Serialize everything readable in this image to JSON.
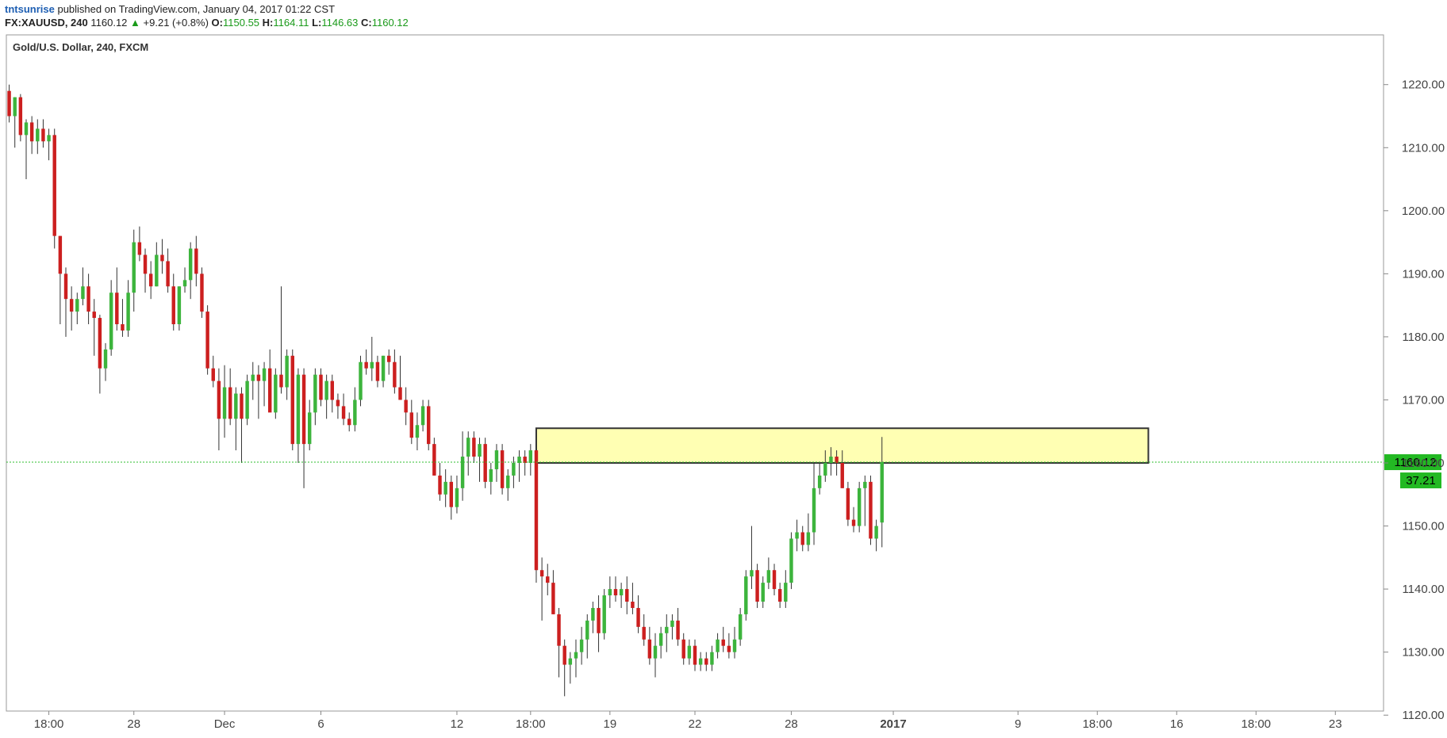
{
  "header": {
    "author": "tntsunrise",
    "published": "published on TradingView.com, January 04, 2017 01:22 CST",
    "symbol": "FX:XAUUSD, 240",
    "last": "1160.12",
    "change_arrow": "▲",
    "change": "+9.21 (+0.8%)",
    "o_label": "O:",
    "o_value": "1150.55",
    "h_label": "H:",
    "h_value": "1164.11",
    "l_label": "L:",
    "l_value": "1146.63",
    "c_label": "C:",
    "c_value": "1160.12"
  },
  "colors": {
    "up": "#3cb43c",
    "down": "#cc1f1f",
    "wick": "#333333",
    "zone_fill": "#ffffb3",
    "zone_stroke": "#333333",
    "price_line": "#2fbf2f",
    "badge_bg": "#23b923",
    "axis": "#888888"
  },
  "chart_data": {
    "type": "candlestick",
    "title": "Gold/U.S. Dollar, 240, FXCM",
    "y_ticks": [
      "1220.00",
      "1210.00",
      "1200.00",
      "1190.00",
      "1180.00",
      "1170.00",
      "1160.00",
      "1150.00",
      "1140.00",
      "1130.00",
      "1120.00"
    ],
    "ylim": [
      1116,
      1226
    ],
    "x_ticks": [
      {
        "label": "18:00",
        "bar": 7,
        "bold": false
      },
      {
        "label": "28",
        "bar": 22,
        "bold": false
      },
      {
        "label": "Dec",
        "bar": 38,
        "bold": false
      },
      {
        "label": "6",
        "bar": 55,
        "bold": false
      },
      {
        "label": "12",
        "bar": 79,
        "bold": false
      },
      {
        "label": "18:00",
        "bar": 92,
        "bold": false
      },
      {
        "label": "19",
        "bar": 106,
        "bold": false
      },
      {
        "label": "22",
        "bar": 121,
        "bold": false
      },
      {
        "label": "28",
        "bar": 138,
        "bold": false
      },
      {
        "label": "2017",
        "bar": 156,
        "bold": true
      },
      {
        "label": "9",
        "bar": 178,
        "bold": false
      },
      {
        "label": "18:00",
        "bar": 192,
        "bold": false
      },
      {
        "label": "16",
        "bar": 206,
        "bold": false
      },
      {
        "label": "18:00",
        "bar": 220,
        "bold": false
      },
      {
        "label": "23",
        "bar": 234,
        "bold": false
      }
    ],
    "total_slots": 243,
    "last_price": "1160.12",
    "countdown": "37.21",
    "zone": {
      "from_bar": 93,
      "to_bar": 201,
      "low": 1160.0,
      "high": 1165.5
    },
    "bars": [
      [
        1219.0,
        1220.0,
        1214.0,
        1215.0
      ],
      [
        1215.0,
        1218.0,
        1210.0,
        1218.0
      ],
      [
        1218.0,
        1218.5,
        1211.0,
        1212.0
      ],
      [
        1212.0,
        1214.5,
        1205.0,
        1214.0
      ],
      [
        1214.0,
        1215.0,
        1209.0,
        1211.0
      ],
      [
        1211.0,
        1214.5,
        1209.0,
        1213.0
      ],
      [
        1213.0,
        1214.5,
        1210.0,
        1211.0
      ],
      [
        1211.0,
        1213.0,
        1208.0,
        1212.0
      ],
      [
        1212.0,
        1213.0,
        1194.0,
        1196.0
      ],
      [
        1196.0,
        1196.0,
        1182.0,
        1190.0
      ],
      [
        1190.0,
        1191.0,
        1180.0,
        1186.0
      ],
      [
        1186.0,
        1188.0,
        1181.0,
        1184.0
      ],
      [
        1184.0,
        1187.0,
        1182.0,
        1186.0
      ],
      [
        1186.0,
        1191.0,
        1185.0,
        1188.0
      ],
      [
        1188.0,
        1190.0,
        1182.0,
        1184.0
      ],
      [
        1184.0,
        1186.0,
        1177.0,
        1183.0
      ],
      [
        1183.0,
        1183.5,
        1171.0,
        1175.0
      ],
      [
        1175.0,
        1179.0,
        1173.0,
        1178.0
      ],
      [
        1178.0,
        1189.0,
        1177.0,
        1187.0
      ],
      [
        1187.0,
        1191.0,
        1181.0,
        1182.0
      ],
      [
        1182.0,
        1186.0,
        1180.0,
        1181.0
      ],
      [
        1181.0,
        1189.0,
        1180.0,
        1187.0
      ],
      [
        1187.0,
        1197.0,
        1184.0,
        1195.0
      ],
      [
        1195.0,
        1197.5,
        1192.0,
        1193.0
      ],
      [
        1193.0,
        1194.0,
        1187.0,
        1190.0
      ],
      [
        1190.0,
        1192.0,
        1186.0,
        1188.0
      ],
      [
        1188.0,
        1195.0,
        1188.0,
        1193.0
      ],
      [
        1193.0,
        1195.5,
        1190.0,
        1192.0
      ],
      [
        1192.0,
        1194.0,
        1187.0,
        1188.0
      ],
      [
        1188.0,
        1190.0,
        1181.0,
        1182.0
      ],
      [
        1182.0,
        1188.0,
        1181.0,
        1188.0
      ],
      [
        1188.0,
        1191.0,
        1187.0,
        1189.0
      ],
      [
        1189.0,
        1195.0,
        1186.0,
        1194.0
      ],
      [
        1194.0,
        1196.0,
        1188.0,
        1190.0
      ],
      [
        1190.0,
        1191.0,
        1183.0,
        1184.0
      ],
      [
        1184.0,
        1185.0,
        1174.0,
        1175.0
      ],
      [
        1175.0,
        1177.0,
        1172.0,
        1173.0
      ],
      [
        1173.0,
        1175.0,
        1162.0,
        1167.0
      ],
      [
        1167.0,
        1175.5,
        1164.0,
        1172.0
      ],
      [
        1172.0,
        1175.0,
        1166.0,
        1167.0
      ],
      [
        1167.0,
        1172.0,
        1162.0,
        1171.0
      ],
      [
        1171.0,
        1172.0,
        1160.0,
        1167.0
      ],
      [
        1167.0,
        1174.0,
        1166.0,
        1173.0
      ],
      [
        1173.0,
        1176.0,
        1170.0,
        1174.0
      ],
      [
        1174.0,
        1175.5,
        1167.0,
        1173.0
      ],
      [
        1173.0,
        1176.0,
        1169.0,
        1175.0
      ],
      [
        1175.0,
        1178.0,
        1170.0,
        1168.0
      ],
      [
        1168.0,
        1175.0,
        1167.0,
        1174.0
      ],
      [
        1174.0,
        1188.0,
        1171.0,
        1172.0
      ],
      [
        1172.0,
        1178.0,
        1170.0,
        1177.0
      ],
      [
        1177.0,
        1178.0,
        1162.0,
        1163.0
      ],
      [
        1163.0,
        1175.0,
        1160.0,
        1174.0
      ],
      [
        1174.0,
        1175.0,
        1156.0,
        1163.0
      ],
      [
        1163.0,
        1170.0,
        1162.0,
        1168.0
      ],
      [
        1168.0,
        1175.0,
        1166.0,
        1174.0
      ],
      [
        1174.0,
        1175.0,
        1169.0,
        1170.0
      ],
      [
        1170.0,
        1174.0,
        1167.0,
        1173.0
      ],
      [
        1173.0,
        1174.0,
        1168.0,
        1170.0
      ],
      [
        1170.0,
        1171.0,
        1167.0,
        1169.0
      ],
      [
        1169.0,
        1171.0,
        1166.0,
        1167.0
      ],
      [
        1167.0,
        1168.0,
        1165.0,
        1166.0
      ],
      [
        1166.0,
        1172.0,
        1165.0,
        1170.0
      ],
      [
        1170.0,
        1177.0,
        1169.0,
        1176.0
      ],
      [
        1176.0,
        1178.0,
        1174.0,
        1175.0
      ],
      [
        1175.0,
        1180.0,
        1173.0,
        1176.0
      ],
      [
        1176.0,
        1177.0,
        1172.0,
        1173.0
      ],
      [
        1173.0,
        1177.0,
        1172.0,
        1177.0
      ],
      [
        1177.0,
        1178.0,
        1174.0,
        1176.0
      ],
      [
        1176.0,
        1178.0,
        1171.0,
        1172.0
      ],
      [
        1172.0,
        1177.0,
        1170.0,
        1170.0
      ],
      [
        1170.0,
        1172.0,
        1166.0,
        1168.0
      ],
      [
        1168.0,
        1170.0,
        1163.0,
        1164.0
      ],
      [
        1164.0,
        1168.0,
        1162.0,
        1166.0
      ],
      [
        1166.0,
        1170.0,
        1165.0,
        1169.0
      ],
      [
        1169.0,
        1170.0,
        1162.0,
        1163.0
      ],
      [
        1163.0,
        1164.0,
        1158.0,
        1158.0
      ],
      [
        1158.0,
        1160.0,
        1154.0,
        1155.0
      ],
      [
        1155.0,
        1159.0,
        1153.0,
        1157.0
      ],
      [
        1157.0,
        1158.0,
        1151.0,
        1153.0
      ],
      [
        1153.0,
        1158.0,
        1152.0,
        1156.0
      ],
      [
        1156.0,
        1165.0,
        1154.0,
        1161.0
      ],
      [
        1161.0,
        1165.0,
        1158.0,
        1164.0
      ],
      [
        1164.0,
        1165.0,
        1160.0,
        1161.0
      ],
      [
        1161.0,
        1164.0,
        1157.0,
        1163.0
      ],
      [
        1163.0,
        1164.0,
        1156.0,
        1157.0
      ],
      [
        1157.0,
        1160.0,
        1155.0,
        1159.0
      ],
      [
        1159.0,
        1163.0,
        1157.0,
        1162.0
      ],
      [
        1162.0,
        1163.0,
        1155.0,
        1156.0
      ],
      [
        1156.0,
        1159.0,
        1154.0,
        1158.0
      ],
      [
        1158.0,
        1161.0,
        1156.0,
        1160.0
      ],
      [
        1160.0,
        1162.0,
        1157.0,
        1161.0
      ],
      [
        1161.0,
        1162.0,
        1158.0,
        1160.0
      ],
      [
        1160.0,
        1163.0,
        1158.0,
        1162.0
      ],
      [
        1162.0,
        1163.0,
        1141.0,
        1143.0
      ],
      [
        1143.0,
        1145.0,
        1135.0,
        1142.0
      ],
      [
        1142.0,
        1144.0,
        1139.0,
        1141.0
      ],
      [
        1141.0,
        1143.0,
        1136.0,
        1136.0
      ],
      [
        1136.0,
        1137.0,
        1126.0,
        1131.0
      ],
      [
        1131.0,
        1132.0,
        1123.0,
        1128.0
      ],
      [
        1128.0,
        1130.0,
        1125.0,
        1129.0
      ],
      [
        1129.0,
        1132.0,
        1126.0,
        1130.0
      ],
      [
        1130.0,
        1134.0,
        1128.0,
        1132.0
      ],
      [
        1132.0,
        1136.0,
        1129.0,
        1135.0
      ],
      [
        1135.0,
        1138.0,
        1133.0,
        1137.0
      ],
      [
        1137.0,
        1139.0,
        1130.0,
        1133.0
      ],
      [
        1133.0,
        1140.0,
        1132.0,
        1139.0
      ],
      [
        1139.0,
        1142.0,
        1137.0,
        1140.0
      ],
      [
        1140.0,
        1142.0,
        1138.0,
        1139.0
      ],
      [
        1139.0,
        1141.0,
        1137.0,
        1140.0
      ],
      [
        1140.0,
        1142.0,
        1136.0,
        1138.0
      ],
      [
        1138.0,
        1141.0,
        1136.0,
        1137.0
      ],
      [
        1137.0,
        1139.0,
        1133.0,
        1134.0
      ],
      [
        1134.0,
        1136.0,
        1131.0,
        1132.0
      ],
      [
        1132.0,
        1134.0,
        1128.0,
        1129.0
      ],
      [
        1129.0,
        1133.0,
        1126.0,
        1131.0
      ],
      [
        1131.0,
        1134.0,
        1129.0,
        1133.0
      ],
      [
        1133.0,
        1136.0,
        1130.0,
        1134.0
      ],
      [
        1134.0,
        1136.0,
        1132.0,
        1135.0
      ],
      [
        1135.0,
        1137.0,
        1131.0,
        1132.0
      ],
      [
        1132.0,
        1133.0,
        1128.0,
        1129.0
      ],
      [
        1129.0,
        1132.0,
        1128.0,
        1131.0
      ],
      [
        1131.0,
        1132.0,
        1127.0,
        1128.0
      ],
      [
        1128.0,
        1130.0,
        1127.0,
        1129.0
      ],
      [
        1129.0,
        1130.0,
        1127.0,
        1128.0
      ],
      [
        1128.0,
        1131.0,
        1127.0,
        1130.0
      ],
      [
        1130.0,
        1133.0,
        1129.0,
        1132.0
      ],
      [
        1132.0,
        1134.0,
        1130.0,
        1131.0
      ],
      [
        1131.0,
        1133.0,
        1129.0,
        1130.0
      ],
      [
        1130.0,
        1134.0,
        1129.0,
        1132.0
      ],
      [
        1132.0,
        1137.0,
        1131.0,
        1136.0
      ],
      [
        1136.0,
        1143.0,
        1135.0,
        1142.0
      ],
      [
        1142.0,
        1150.0,
        1140.0,
        1143.0
      ],
      [
        1143.0,
        1144.0,
        1137.0,
        1138.0
      ],
      [
        1138.0,
        1142.0,
        1137.0,
        1141.0
      ],
      [
        1141.0,
        1145.0,
        1140.0,
        1143.0
      ],
      [
        1143.0,
        1144.0,
        1139.0,
        1140.0
      ],
      [
        1140.0,
        1141.0,
        1137.0,
        1138.0
      ],
      [
        1138.0,
        1143.0,
        1137.0,
        1141.0
      ],
      [
        1141.0,
        1149.0,
        1140.0,
        1148.0
      ],
      [
        1148.0,
        1151.0,
        1146.0,
        1149.0
      ],
      [
        1149.0,
        1150.0,
        1146.0,
        1147.0
      ],
      [
        1147.0,
        1152.0,
        1146.0,
        1149.0
      ],
      [
        1149.0,
        1160.0,
        1147.0,
        1156.0
      ],
      [
        1156.0,
        1160.0,
        1155.0,
        1158.0
      ],
      [
        1158.0,
        1162.0,
        1157.0,
        1160.0
      ],
      [
        1160.0,
        1162.5,
        1158.0,
        1161.0
      ],
      [
        1161.0,
        1162.0,
        1158.0,
        1160.0
      ],
      [
        1160.0,
        1162.0,
        1156.0,
        1156.0
      ],
      [
        1156.0,
        1157.0,
        1150.0,
        1151.0
      ],
      [
        1151.0,
        1153.0,
        1149.0,
        1150.0
      ],
      [
        1150.0,
        1157.0,
        1149.0,
        1156.0
      ],
      [
        1156.0,
        1158.0,
        1150.0,
        1157.0
      ],
      [
        1157.0,
        1158.0,
        1147.0,
        1148.0
      ],
      [
        1148.0,
        1151.0,
        1146.0,
        1150.0
      ],
      [
        1150.55,
        1164.11,
        1146.63,
        1160.12
      ]
    ]
  }
}
